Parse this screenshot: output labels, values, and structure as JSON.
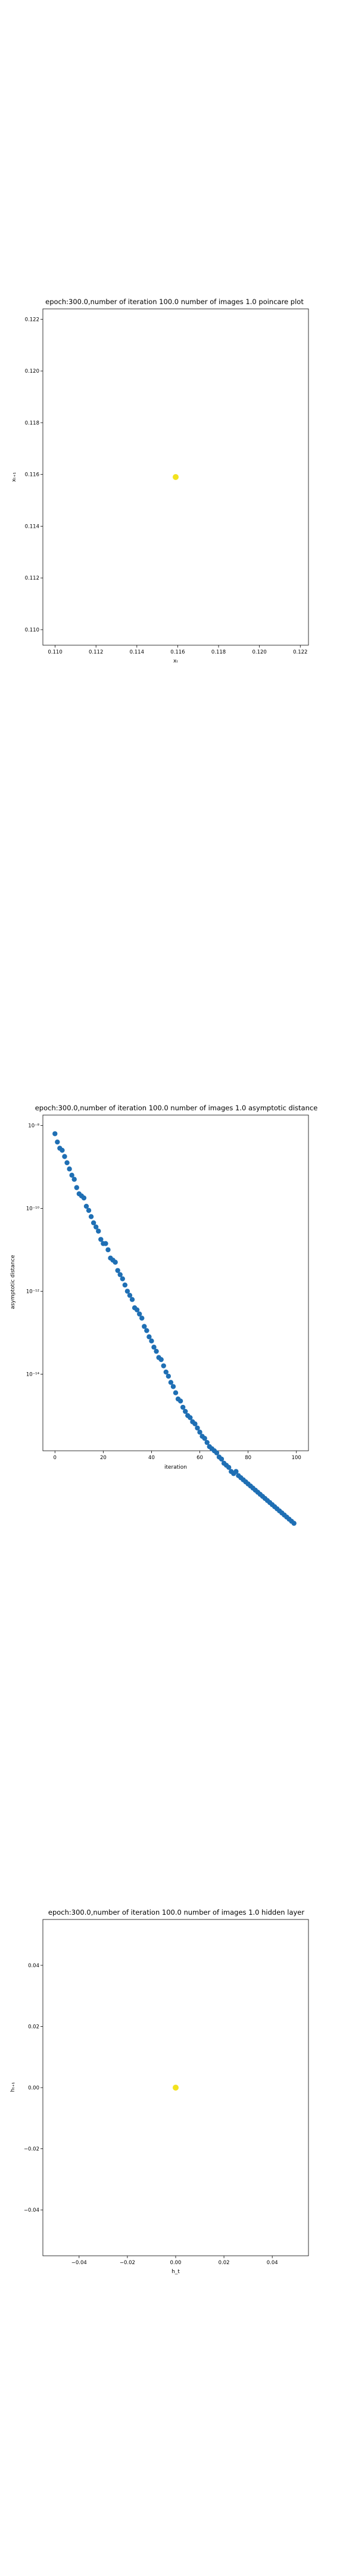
{
  "chart_data": [
    {
      "type": "scatter",
      "title": "epoch:300.0,number of iteration 100.0 number of images 1.0 poincare plot",
      "xlabel": "xₜ",
      "ylabel": "xₜ₊₁",
      "xlim": [
        0.1094,
        0.1224
      ],
      "ylim": [
        0.1094,
        0.1224
      ],
      "x_scale": "linear",
      "y_scale": "linear",
      "xticks": [
        0.11,
        0.112,
        0.114,
        0.116,
        0.118,
        0.12,
        0.122
      ],
      "xtick_labels": [
        "0.110",
        "0.112",
        "0.114",
        "0.116",
        "0.118",
        "0.120",
        "0.122"
      ],
      "yticks": [
        0.11,
        0.112,
        0.114,
        0.116,
        0.118,
        0.12,
        0.122
      ],
      "ytick_labels": [
        "0.110",
        "0.112",
        "0.114",
        "0.116",
        "0.118",
        "0.120",
        "0.122"
      ],
      "grid": false,
      "point_color": "#f2e21e",
      "points": [
        {
          "x": 0.1159,
          "y": 0.1159
        }
      ]
    },
    {
      "type": "scatter",
      "title": "epoch:300.0,number of iteration 100.0  number of images 1.0 asymptotic distance",
      "xlabel": "iteration",
      "ylabel": "asymptotic distance",
      "xlim": [
        -5,
        105
      ],
      "ylim": [
        -15.85,
        -7.75
      ],
      "x_scale": "linear",
      "y_scale": "log",
      "xticks": [
        0,
        20,
        40,
        60,
        80,
        100
      ],
      "xtick_labels": [
        "0",
        "20",
        "40",
        "60",
        "80",
        "100"
      ],
      "yticks": [
        -8,
        -10,
        -12,
        -14
      ],
      "ytick_labels": [
        "10⁻⁸",
        "10⁻¹⁰",
        "10⁻¹²",
        "10⁻¹⁴"
      ],
      "grid": false,
      "point_color": "#1f6fb4",
      "series": [
        {
          "x": [
            0,
            1,
            2,
            3,
            4,
            5,
            6,
            7,
            8,
            9,
            10,
            11,
            12,
            13,
            14,
            15,
            16,
            17,
            18,
            19,
            20,
            21,
            22,
            23,
            24,
            25,
            26,
            27,
            28,
            29,
            30,
            31,
            32,
            33,
            34,
            35,
            36,
            37,
            38,
            39,
            40,
            41,
            42,
            43,
            44,
            45,
            46,
            47,
            48,
            49,
            50,
            51,
            52,
            53,
            54,
            55,
            56,
            57,
            58,
            59,
            60,
            61,
            62,
            63,
            64,
            65,
            66,
            67,
            68,
            69,
            70,
            71,
            72,
            73,
            74,
            75,
            76,
            77,
            78,
            79,
            80,
            81,
            82,
            83,
            84,
            85,
            86,
            87,
            88,
            89,
            90,
            91,
            92,
            93,
            94,
            95,
            96,
            97,
            98,
            99
          ],
          "log10_y": [
            -8.2,
            -8.4,
            -8.55,
            -8.6,
            -8.75,
            -8.9,
            -9.05,
            -9.2,
            -9.3,
            -9.5,
            -9.65,
            -9.7,
            -9.75,
            -9.95,
            -10.05,
            -10.2,
            -10.35,
            -10.45,
            -10.55,
            -10.75,
            -10.85,
            -10.85,
            -11.0,
            -11.2,
            -11.25,
            -11.3,
            -11.5,
            -11.6,
            -11.7,
            -11.85,
            -12.0,
            -12.1,
            -12.2,
            -12.4,
            -12.45,
            -12.55,
            -12.65,
            -12.85,
            -12.95,
            -13.1,
            -13.2,
            -13.35,
            -13.45,
            -13.6,
            -13.65,
            -13.8,
            -13.95,
            -14.05,
            -14.2,
            -14.3,
            -14.45,
            -14.6,
            -14.65,
            -14.8,
            -14.9,
            -15.0,
            -15.05,
            -15.15,
            -15.2,
            -15.3,
            -15.4,
            -15.5,
            -15.55,
            -15.65,
            -15.75,
            -15.8,
            -15.85,
            -15.9,
            -16.0,
            -16.05,
            -16.15,
            -16.2,
            -16.25,
            -16.35,
            -16.4,
            -16.35,
            -16.45,
            -16.5,
            -16.55,
            -16.6,
            -16.65,
            -16.7,
            -16.75,
            -16.8,
            -16.85,
            -16.9,
            -16.95,
            -17.0,
            -17.05,
            -17.1,
            -17.15,
            -17.2,
            -17.25,
            -17.3,
            -17.35,
            -17.4,
            -17.45,
            -17.5,
            -17.55,
            -17.6
          ]
        }
      ]
    },
    {
      "type": "scatter",
      "title": "epoch:300.0,number of iteration 100.0  number of images 1.0 hidden layer",
      "xlabel": "h_t",
      "ylabel": "hₜ₊₁",
      "xlim": [
        -0.055,
        0.055
      ],
      "ylim": [
        -0.055,
        0.055
      ],
      "x_scale": "linear",
      "y_scale": "linear",
      "xticks": [
        -0.04,
        -0.02,
        0.0,
        0.02,
        0.04
      ],
      "xtick_labels": [
        "−0.04",
        "−0.02",
        "0.00",
        "0.02",
        "0.04"
      ],
      "yticks": [
        -0.04,
        -0.02,
        0.0,
        0.02,
        0.04
      ],
      "ytick_labels": [
        "−0.04",
        "−0.02",
        "0.00",
        "0.02",
        "0.04"
      ],
      "grid": false,
      "point_color": "#f2e21e",
      "points": [
        {
          "x": 0.0,
          "y": 0.0
        }
      ]
    }
  ]
}
